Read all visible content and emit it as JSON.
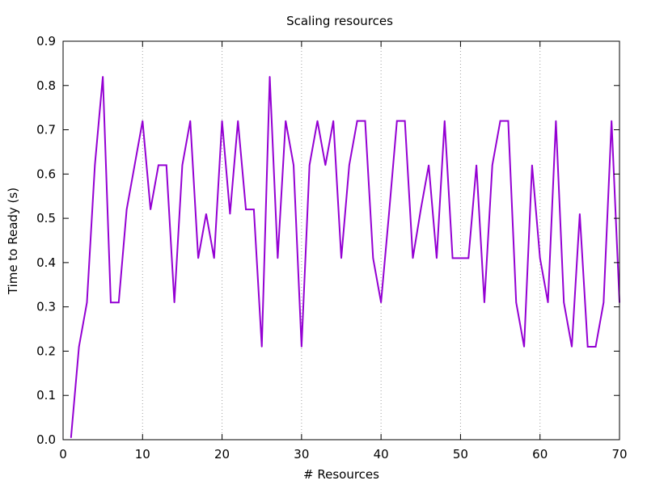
{
  "chart_data": {
    "type": "line",
    "title": "Scaling resources",
    "xlabel": "# Resources",
    "ylabel": "Time to Ready (s)",
    "xlim": [
      0,
      70
    ],
    "ylim": [
      0,
      0.9
    ],
    "x_ticks": [
      0,
      10,
      20,
      30,
      40,
      50,
      60,
      70
    ],
    "x_tick_labels": [
      "0",
      "10",
      "20",
      "30",
      "40",
      "50",
      "60",
      "70"
    ],
    "y_ticks": [
      0,
      0.1,
      0.2,
      0.3,
      0.4,
      0.5,
      0.6,
      0.7,
      0.8,
      0.9
    ],
    "y_tick_labels": [
      "0.0",
      "0.1",
      "0.2",
      "0.3",
      "0.4",
      "0.5",
      "0.6",
      "0.7",
      "0.8",
      "0.9"
    ],
    "grid": "vertical dotted at x ticks",
    "legend": "none",
    "series": [
      {
        "color": "#9400d3",
        "x": [
          1,
          2,
          3,
          4,
          5,
          6,
          7,
          8,
          9,
          10,
          11,
          12,
          13,
          14,
          15,
          16,
          17,
          18,
          19,
          20,
          21,
          22,
          23,
          24,
          25,
          26,
          27,
          28,
          29,
          30,
          31,
          32,
          33,
          34,
          35,
          36,
          37,
          38,
          39,
          40,
          41,
          42,
          43,
          44,
          45,
          46,
          47,
          48,
          49,
          50,
          51,
          52,
          53,
          54,
          55,
          56,
          57,
          58,
          59,
          60,
          61,
          62,
          63,
          64,
          65,
          66,
          67,
          68,
          69,
          70
        ],
        "y": [
          0.005,
          0.21,
          0.31,
          0.62,
          0.82,
          0.31,
          0.31,
          0.52,
          0.62,
          0.72,
          0.52,
          0.62,
          0.62,
          0.31,
          0.62,
          0.72,
          0.41,
          0.51,
          0.41,
          0.72,
          0.51,
          0.72,
          0.52,
          0.52,
          0.21,
          0.82,
          0.41,
          0.72,
          0.62,
          0.21,
          0.62,
          0.72,
          0.62,
          0.72,
          0.41,
          0.62,
          0.72,
          0.72,
          0.41,
          0.31,
          0.51,
          0.72,
          0.72,
          0.41,
          0.52,
          0.62,
          0.41,
          0.72,
          0.41,
          0.41,
          0.41,
          0.62,
          0.31,
          0.62,
          0.72,
          0.72,
          0.31,
          0.21,
          0.62,
          0.41,
          0.31,
          0.72,
          0.31,
          0.21,
          0.51,
          0.21,
          0.21,
          0.31,
          0.72,
          0.31
        ]
      }
    ]
  }
}
